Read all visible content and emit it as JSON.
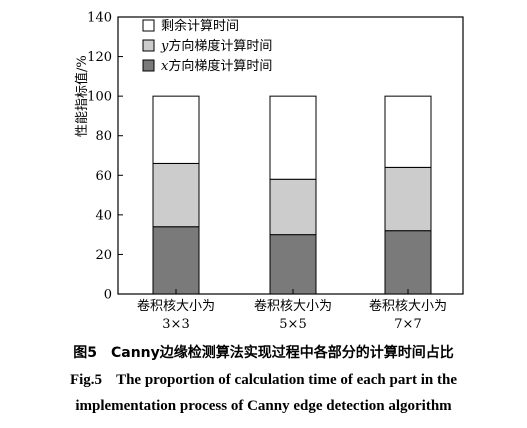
{
  "chart_data": {
    "type": "bar",
    "stacked": true,
    "categories": [
      [
        "卷积核大小为",
        "3×3"
      ],
      [
        "卷积核大小为",
        "5×5"
      ],
      [
        "卷积核大小为",
        "7×7"
      ]
    ],
    "series": [
      {
        "name": "x方向梯度计算时间",
        "name_var": "x",
        "name_rest": "方向梯度计算时间",
        "color": "#7a7a7a",
        "values": [
          34,
          30,
          32
        ]
      },
      {
        "name": "y方向梯度计算时间",
        "name_var": "y",
        "name_rest": "方向梯度计算时间",
        "color": "#cccccc",
        "values": [
          32,
          28,
          32
        ]
      },
      {
        "name": "剩余计算时间",
        "name_var": "",
        "name_rest": "剩余计算时间",
        "color": "#ffffff",
        "values": [
          34,
          42,
          36
        ]
      }
    ],
    "ylabel": "性能指标值/%",
    "ylim": [
      0,
      140
    ],
    "yticks": [
      0,
      20,
      40,
      60,
      80,
      100,
      120,
      140
    ],
    "legend_position": "top-left",
    "grid": false
  },
  "caption": {
    "cn_fig": "图5",
    "cn_text": "Canny边缘检测算法实现过程中各部分的计算时间占比",
    "en_fig": "Fig.5",
    "en_line1": "The proportion of calculation time of each part in the",
    "en_line2": "implementation process of Canny edge detection algorithm"
  }
}
